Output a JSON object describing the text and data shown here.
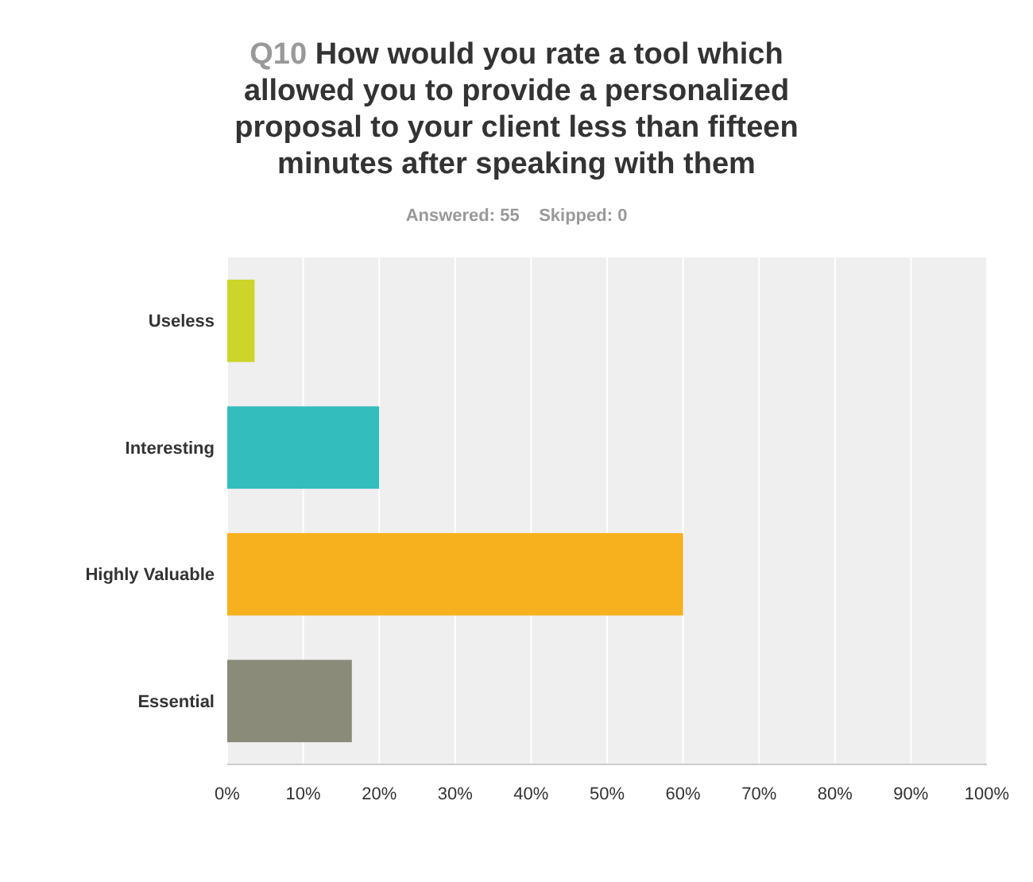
{
  "chart_data": {
    "type": "bar",
    "orientation": "horizontal",
    "title": "Q10 How would you rate a tool which allowed you to provide a personalized proposal to your client less than fifteen minutes after speaking with them",
    "subtitle": "Answered: 55    Skipped: 0",
    "categories": [
      "Useless",
      "Interesting",
      "Highly Valuable",
      "Essential"
    ],
    "values": [
      3.6,
      20,
      60,
      16.4
    ],
    "colors": [
      "#cdd42a",
      "#33bdbd",
      "#f7b01e",
      "#8a8b79"
    ],
    "xlim": [
      0,
      100
    ],
    "xticks": [
      {
        "value": 0,
        "label": "0%"
      },
      {
        "value": 10,
        "label": "10%"
      },
      {
        "value": 20,
        "label": "20%"
      },
      {
        "value": 30,
        "label": "30%"
      },
      {
        "value": 40,
        "label": "40%"
      },
      {
        "value": 50,
        "label": "50%"
      },
      {
        "value": 60,
        "label": "60%"
      },
      {
        "value": 70,
        "label": "70%"
      },
      {
        "value": 80,
        "label": "80%"
      },
      {
        "value": 90,
        "label": "90%"
      },
      {
        "value": 100,
        "label": "100%"
      }
    ],
    "grid": "x"
  }
}
